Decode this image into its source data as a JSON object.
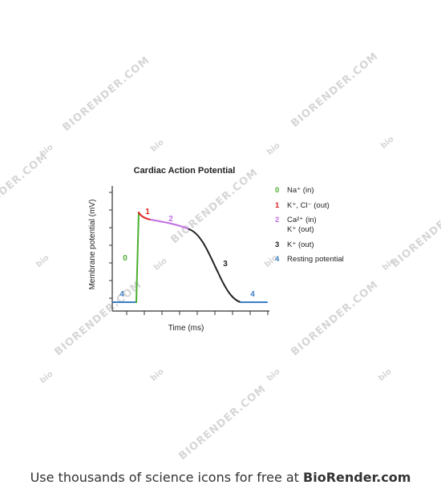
{
  "diagram": {
    "title": "Cardiac Action Potential",
    "y_axis_label": "Membrane potential (mV)",
    "x_axis_label": "Time (ms)",
    "curve_labels": [
      {
        "text": "0",
        "color": "#4caf2e"
      },
      {
        "text": "1",
        "color": "#e0221f"
      },
      {
        "text": "2",
        "color": "#c06ee0"
      },
      {
        "text": "3",
        "color": "#222222"
      },
      {
        "text": "4",
        "color": "#3b7fc4"
      },
      {
        "text": "4",
        "color": "#3b7fc4"
      }
    ],
    "legend": [
      {
        "phase": "0",
        "color": "#4caf2e",
        "lines": [
          "Na⁺ (in)"
        ]
      },
      {
        "phase": "1",
        "color": "#e0221f",
        "lines": [
          "K⁺, Cl⁻ (out)"
        ]
      },
      {
        "phase": "2",
        "color": "#c06ee0",
        "lines": [
          "Ca²⁺ (in)",
          "K⁺ (out)"
        ]
      },
      {
        "phase": "3",
        "color": "#222222",
        "lines": [
          "K⁺ (out)"
        ]
      },
      {
        "phase": "4",
        "color": "#3b7fc4",
        "lines": [
          "Resting potential"
        ]
      }
    ]
  },
  "watermark": {
    "text": "BIORENDER.COM",
    "mark": "bio",
    "color": "#d6d6d6"
  },
  "footer": {
    "prefix": "Use thousands of science icons for free at ",
    "brand": "BioRender.com"
  }
}
